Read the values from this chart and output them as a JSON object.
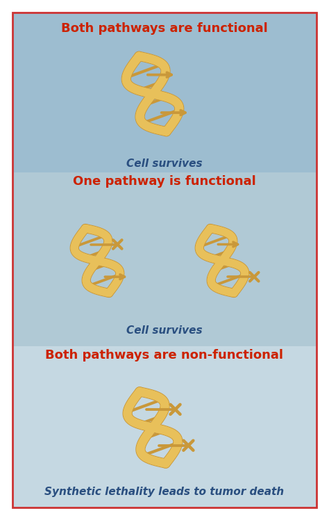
{
  "bg_color": "#ffffff",
  "border_color": "#cc3333",
  "section1_bg": "#9dbdd0",
  "section2_bg": "#b0c9d5",
  "section3_bg": "#c5d8e2",
  "dna_fill": "#e8c05a",
  "dna_edge": "#c9983a",
  "title1": "Both pathways are functional",
  "title2": "One pathway is functional",
  "title3": "Both pathways are non-functional",
  "subtitle1": "Cell survives",
  "subtitle2": "Cell survives",
  "subtitle3": "Synthetic lethality leads to tumor death",
  "title_color": "#cc2200",
  "subtitle_color": "#2a4f80",
  "title_fontsize": 13,
  "subtitle_fontsize": 11
}
